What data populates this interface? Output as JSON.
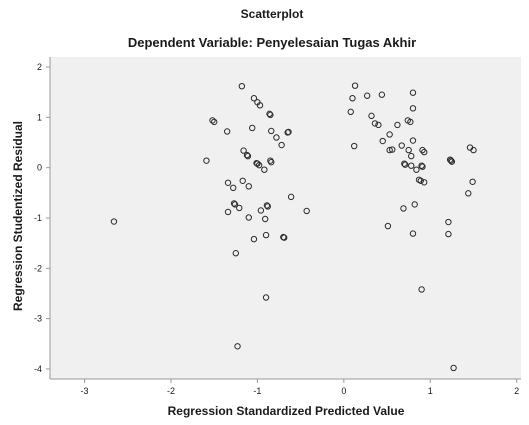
{
  "chart_data": {
    "type": "scatter",
    "title": "Scatterplot",
    "subtitle": "Dependent Variable: Penyelesaian  Tugas Akhir",
    "xlabel": "Regression Standardized Predicted Value",
    "ylabel": "Regression Studentized Residual",
    "xlim": [
      -3.4,
      2.05
    ],
    "ylim": [
      -4.2,
      2.2
    ],
    "xticks": [
      -3,
      -2,
      -1,
      0,
      1,
      2
    ],
    "yticks": [
      2,
      1,
      0,
      -1,
      -2,
      -3,
      -4
    ],
    "grid": false,
    "legend": "none",
    "colors": {
      "plot_background": "#f0f0f0",
      "marker_stroke": "#2b2b2b",
      "axis": "#9a9a9a"
    },
    "points": [
      {
        "x": -2.66,
        "y": -1.07
      },
      {
        "x": -1.59,
        "y": 0.14
      },
      {
        "x": -1.52,
        "y": 0.94
      },
      {
        "x": -1.5,
        "y": 0.91
      },
      {
        "x": -1.35,
        "y": 0.72
      },
      {
        "x": -1.34,
        "y": -0.3
      },
      {
        "x": -1.34,
        "y": -0.88
      },
      {
        "x": -1.28,
        "y": -0.4
      },
      {
        "x": -1.27,
        "y": -0.71
      },
      {
        "x": -1.26,
        "y": -0.73
      },
      {
        "x": -1.25,
        "y": -1.7
      },
      {
        "x": -1.23,
        "y": -3.55
      },
      {
        "x": -1.21,
        "y": -0.8
      },
      {
        "x": -1.18,
        "y": 1.62
      },
      {
        "x": -1.17,
        "y": -0.26
      },
      {
        "x": -1.16,
        "y": 0.34
      },
      {
        "x": -1.12,
        "y": 0.25
      },
      {
        "x": -1.11,
        "y": 0.23
      },
      {
        "x": -1.1,
        "y": -0.37
      },
      {
        "x": -1.1,
        "y": -0.99
      },
      {
        "x": -1.06,
        "y": 0.79
      },
      {
        "x": -1.04,
        "y": 1.38
      },
      {
        "x": -1.04,
        "y": -1.42
      },
      {
        "x": -1.01,
        "y": 0.09
      },
      {
        "x": -1.0,
        "y": 1.3
      },
      {
        "x": -1.0,
        "y": 0.08
      },
      {
        "x": -0.98,
        "y": 0.05
      },
      {
        "x": -0.97,
        "y": 1.24
      },
      {
        "x": -0.96,
        "y": -0.85
      },
      {
        "x": -0.92,
        "y": -0.04
      },
      {
        "x": -0.91,
        "y": -1.02
      },
      {
        "x": -0.9,
        "y": -1.34
      },
      {
        "x": -0.9,
        "y": -2.58
      },
      {
        "x": -0.89,
        "y": -0.75
      },
      {
        "x": -0.88,
        "y": -0.77
      },
      {
        "x": -0.86,
        "y": 1.07
      },
      {
        "x": -0.85,
        "y": 1.05
      },
      {
        "x": -0.85,
        "y": 0.14
      },
      {
        "x": -0.84,
        "y": 0.11
      },
      {
        "x": -0.84,
        "y": 0.73
      },
      {
        "x": -0.78,
        "y": 0.6
      },
      {
        "x": -0.72,
        "y": 0.45
      },
      {
        "x": -0.7,
        "y": -1.38
      },
      {
        "x": -0.69,
        "y": -1.39
      },
      {
        "x": -0.65,
        "y": 0.7
      },
      {
        "x": -0.64,
        "y": 0.71
      },
      {
        "x": -0.61,
        "y": -0.58
      },
      {
        "x": -0.43,
        "y": -0.86
      },
      {
        "x": 0.08,
        "y": 1.11
      },
      {
        "x": 0.1,
        "y": 1.38
      },
      {
        "x": 0.12,
        "y": 0.43
      },
      {
        "x": 0.13,
        "y": 1.63
      },
      {
        "x": 0.27,
        "y": 1.43
      },
      {
        "x": 0.32,
        "y": 1.03
      },
      {
        "x": 0.36,
        "y": 0.88
      },
      {
        "x": 0.4,
        "y": 0.85
      },
      {
        "x": 0.44,
        "y": 1.45
      },
      {
        "x": 0.45,
        "y": 0.53
      },
      {
        "x": 0.51,
        "y": -1.16
      },
      {
        "x": 0.53,
        "y": 0.66
      },
      {
        "x": 0.53,
        "y": 0.35
      },
      {
        "x": 0.56,
        "y": 0.36
      },
      {
        "x": 0.62,
        "y": 0.85
      },
      {
        "x": 0.67,
        "y": 0.44
      },
      {
        "x": 0.69,
        "y": -0.81
      },
      {
        "x": 0.7,
        "y": 0.08
      },
      {
        "x": 0.71,
        "y": 0.06
      },
      {
        "x": 0.74,
        "y": 0.94
      },
      {
        "x": 0.75,
        "y": 0.35
      },
      {
        "x": 0.77,
        "y": 0.91
      },
      {
        "x": 0.78,
        "y": 0.04
      },
      {
        "x": 0.78,
        "y": 0.23
      },
      {
        "x": 0.8,
        "y": 1.49
      },
      {
        "x": 0.8,
        "y": 1.18
      },
      {
        "x": 0.8,
        "y": 0.54
      },
      {
        "x": 0.8,
        "y": -1.31
      },
      {
        "x": 0.82,
        "y": -0.73
      },
      {
        "x": 0.84,
        "y": -0.04
      },
      {
        "x": 0.87,
        "y": -0.24
      },
      {
        "x": 0.89,
        "y": -0.26
      },
      {
        "x": 0.9,
        "y": -2.42
      },
      {
        "x": 0.9,
        "y": 0.04
      },
      {
        "x": 0.91,
        "y": 0.02
      },
      {
        "x": 0.91,
        "y": 0.35
      },
      {
        "x": 0.93,
        "y": 0.31
      },
      {
        "x": 0.93,
        "y": -0.29
      },
      {
        "x": 1.21,
        "y": -1.08
      },
      {
        "x": 1.21,
        "y": -1.32
      },
      {
        "x": 1.23,
        "y": 0.16
      },
      {
        "x": 1.24,
        "y": 0.14
      },
      {
        "x": 1.25,
        "y": 0.12
      },
      {
        "x": 1.27,
        "y": -3.98
      },
      {
        "x": 1.44,
        "y": -0.51
      },
      {
        "x": 1.46,
        "y": 0.4
      },
      {
        "x": 1.49,
        "y": -0.28
      },
      {
        "x": 1.5,
        "y": 0.35
      }
    ]
  }
}
